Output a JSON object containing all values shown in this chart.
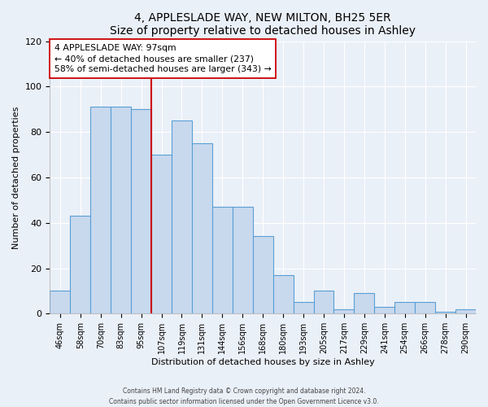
{
  "title": "4, APPLESLADE WAY, NEW MILTON, BH25 5ER",
  "subtitle": "Size of property relative to detached houses in Ashley",
  "xlabel": "Distribution of detached houses by size in Ashley",
  "ylabel": "Number of detached properties",
  "bin_labels": [
    "46sqm",
    "58sqm",
    "70sqm",
    "83sqm",
    "95sqm",
    "107sqm",
    "119sqm",
    "131sqm",
    "144sqm",
    "156sqm",
    "168sqm",
    "180sqm",
    "193sqm",
    "205sqm",
    "217sqm",
    "229sqm",
    "241sqm",
    "254sqm",
    "266sqm",
    "278sqm",
    "290sqm"
  ],
  "bar_values": [
    10,
    43,
    91,
    91,
    90,
    70,
    85,
    75,
    47,
    47,
    34,
    17,
    5,
    10,
    2,
    9,
    3,
    5,
    5,
    1,
    2
  ],
  "bar_color": "#c8d9ee",
  "bar_edge_color": "#5a9fd4",
  "vline_color": "#cc0000",
  "annotation_text": "4 APPLESLADE WAY: 97sqm\n← 40% of detached houses are smaller (237)\n58% of semi-detached houses are larger (343) →",
  "annotation_box_color": "#ffffff",
  "annotation_box_edge": "#cc0000",
  "ylim": [
    0,
    120
  ],
  "yticks": [
    0,
    20,
    40,
    60,
    80,
    100,
    120
  ],
  "footer_line1": "Contains HM Land Registry data © Crown copyright and database right 2024.",
  "footer_line2": "Contains public sector information licensed under the Open Government Licence v3.0.",
  "bg_color": "#eaf0f8",
  "plot_bg_color": "#eaf0f8",
  "grid_color": "#ffffff",
  "vline_x_idx": 4
}
